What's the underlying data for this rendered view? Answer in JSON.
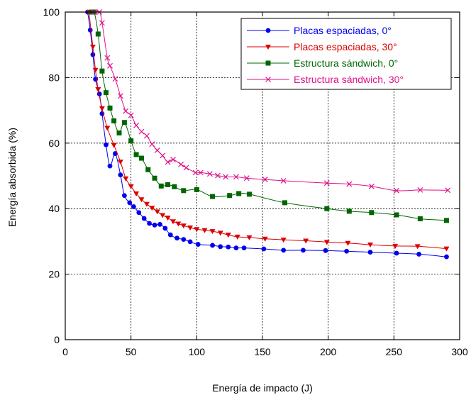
{
  "chart_data": {
    "type": "line",
    "xlabel": "Energía de impacto (J)",
    "ylabel": "Energía absorbida (%)",
    "xlim": [
      0,
      300
    ],
    "ylim": [
      0,
      100
    ],
    "xticks": [
      0,
      50,
      100,
      150,
      200,
      250,
      300
    ],
    "yticks": [
      0,
      20,
      40,
      60,
      80,
      100
    ],
    "grid": true,
    "legend_position": "top-right",
    "series": [
      {
        "name": "Placas espaciadas, 0°",
        "color": "#0000ee",
        "marker": "circle",
        "points": [
          [
            17,
            100
          ],
          [
            19,
            94.5
          ],
          [
            21,
            87
          ],
          [
            23,
            79.5
          ],
          [
            26,
            75
          ],
          [
            28,
            69
          ],
          [
            31,
            59.5
          ],
          [
            34,
            53
          ],
          [
            38,
            56.8
          ],
          [
            42,
            50.3
          ],
          [
            45,
            44
          ],
          [
            49,
            41.8
          ],
          [
            52,
            40.6
          ],
          [
            56,
            38.8
          ],
          [
            60,
            37
          ],
          [
            64,
            35.5
          ],
          [
            68,
            35
          ],
          [
            72,
            35.2
          ],
          [
            76,
            34
          ],
          [
            80,
            32
          ],
          [
            85,
            31
          ],
          [
            90,
            30.6
          ],
          [
            95,
            29.9
          ],
          [
            101,
            29.1
          ],
          [
            112,
            28.8
          ],
          [
            118,
            28.4
          ],
          [
            124,
            28.3
          ],
          [
            130,
            28
          ],
          [
            136,
            28
          ],
          [
            151,
            27.7
          ],
          [
            166,
            27.3
          ],
          [
            181,
            27.3
          ],
          [
            198,
            27.2
          ],
          [
            214,
            27
          ],
          [
            232,
            26.7
          ],
          [
            252,
            26.4
          ],
          [
            269,
            26.1
          ],
          [
            290,
            25.3
          ]
        ]
      },
      {
        "name": "Placas espaciadas, 30°",
        "color": "#dd0000",
        "marker": "triangle-down",
        "points": [
          [
            18,
            100
          ],
          [
            21,
            89.4
          ],
          [
            23,
            82.3
          ],
          [
            25,
            76.4
          ],
          [
            28,
            70.6
          ],
          [
            32,
            64.6
          ],
          [
            37,
            59.4
          ],
          [
            42,
            54.3
          ],
          [
            46,
            49.2
          ],
          [
            50,
            46.8
          ],
          [
            54,
            44.6
          ],
          [
            58,
            42.8
          ],
          [
            62,
            41.4
          ],
          [
            66,
            40.2
          ],
          [
            70,
            39.1
          ],
          [
            74,
            38
          ],
          [
            78,
            37.2
          ],
          [
            82,
            36.1
          ],
          [
            86,
            35.4
          ],
          [
            90,
            34.8
          ],
          [
            95,
            34.2
          ],
          [
            100,
            33.7
          ],
          [
            106,
            33.4
          ],
          [
            112,
            33.1
          ],
          [
            118,
            32.6
          ],
          [
            124,
            32
          ],
          [
            131,
            31.4
          ],
          [
            140,
            31.2
          ],
          [
            152,
            30.8
          ],
          [
            166,
            30.5
          ],
          [
            183,
            30.2
          ],
          [
            199,
            29.8
          ],
          [
            215,
            29.5
          ],
          [
            232,
            29
          ],
          [
            251,
            28.6
          ],
          [
            268,
            28.5
          ],
          [
            290,
            27.8
          ]
        ]
      },
      {
        "name": "Estructura sándwich, 0°",
        "color": "#006600",
        "marker": "square",
        "points": [
          [
            20,
            100
          ],
          [
            22,
            100
          ],
          [
            25,
            93.3
          ],
          [
            28,
            82
          ],
          [
            31,
            75.4
          ],
          [
            34,
            70.7
          ],
          [
            37,
            66.8
          ],
          [
            41,
            63.1
          ],
          [
            45,
            66.3
          ],
          [
            50,
            60.7
          ],
          [
            54,
            56.5
          ],
          [
            58,
            55.4
          ],
          [
            63,
            51.9
          ],
          [
            68,
            49.3
          ],
          [
            73,
            46.9
          ],
          [
            78,
            47.3
          ],
          [
            83,
            46.7
          ],
          [
            90,
            45.5
          ],
          [
            100,
            45.8
          ],
          [
            112,
            43.7
          ],
          [
            125,
            44
          ],
          [
            132,
            44.6
          ],
          [
            140,
            44.4
          ],
          [
            167,
            41.8
          ],
          [
            199,
            40
          ],
          [
            216,
            39.2
          ],
          [
            233,
            38.8
          ],
          [
            252,
            38.1
          ],
          [
            270,
            36.9
          ],
          [
            290,
            36.4
          ]
        ]
      },
      {
        "name": "Estructura sándwich, 30°",
        "color": "#e0118a",
        "marker": "x",
        "points": [
          [
            22,
            100
          ],
          [
            26,
            100
          ],
          [
            28,
            96.7
          ],
          [
            32,
            86
          ],
          [
            34,
            83.6
          ],
          [
            38,
            79.6
          ],
          [
            42,
            74.4
          ],
          [
            46,
            69.8
          ],
          [
            50,
            68.5
          ],
          [
            54,
            65.4
          ],
          [
            58,
            63.5
          ],
          [
            62,
            62.2
          ],
          [
            66,
            59.7
          ],
          [
            70,
            57.8
          ],
          [
            74,
            56.2
          ],
          [
            78,
            54.2
          ],
          [
            82,
            55
          ],
          [
            88,
            53.5
          ],
          [
            92,
            52.5
          ],
          [
            99,
            51
          ],
          [
            103,
            51
          ],
          [
            110,
            50.6
          ],
          [
            116,
            50.1
          ],
          [
            122,
            49.7
          ],
          [
            130,
            49.7
          ],
          [
            138,
            49.3
          ],
          [
            152,
            48.9
          ],
          [
            166,
            48.5
          ],
          [
            199,
            47.8
          ],
          [
            216,
            47.5
          ],
          [
            233,
            46.8
          ],
          [
            252,
            45.5
          ],
          [
            270,
            45.7
          ],
          [
            291,
            45.6
          ]
        ]
      }
    ]
  }
}
